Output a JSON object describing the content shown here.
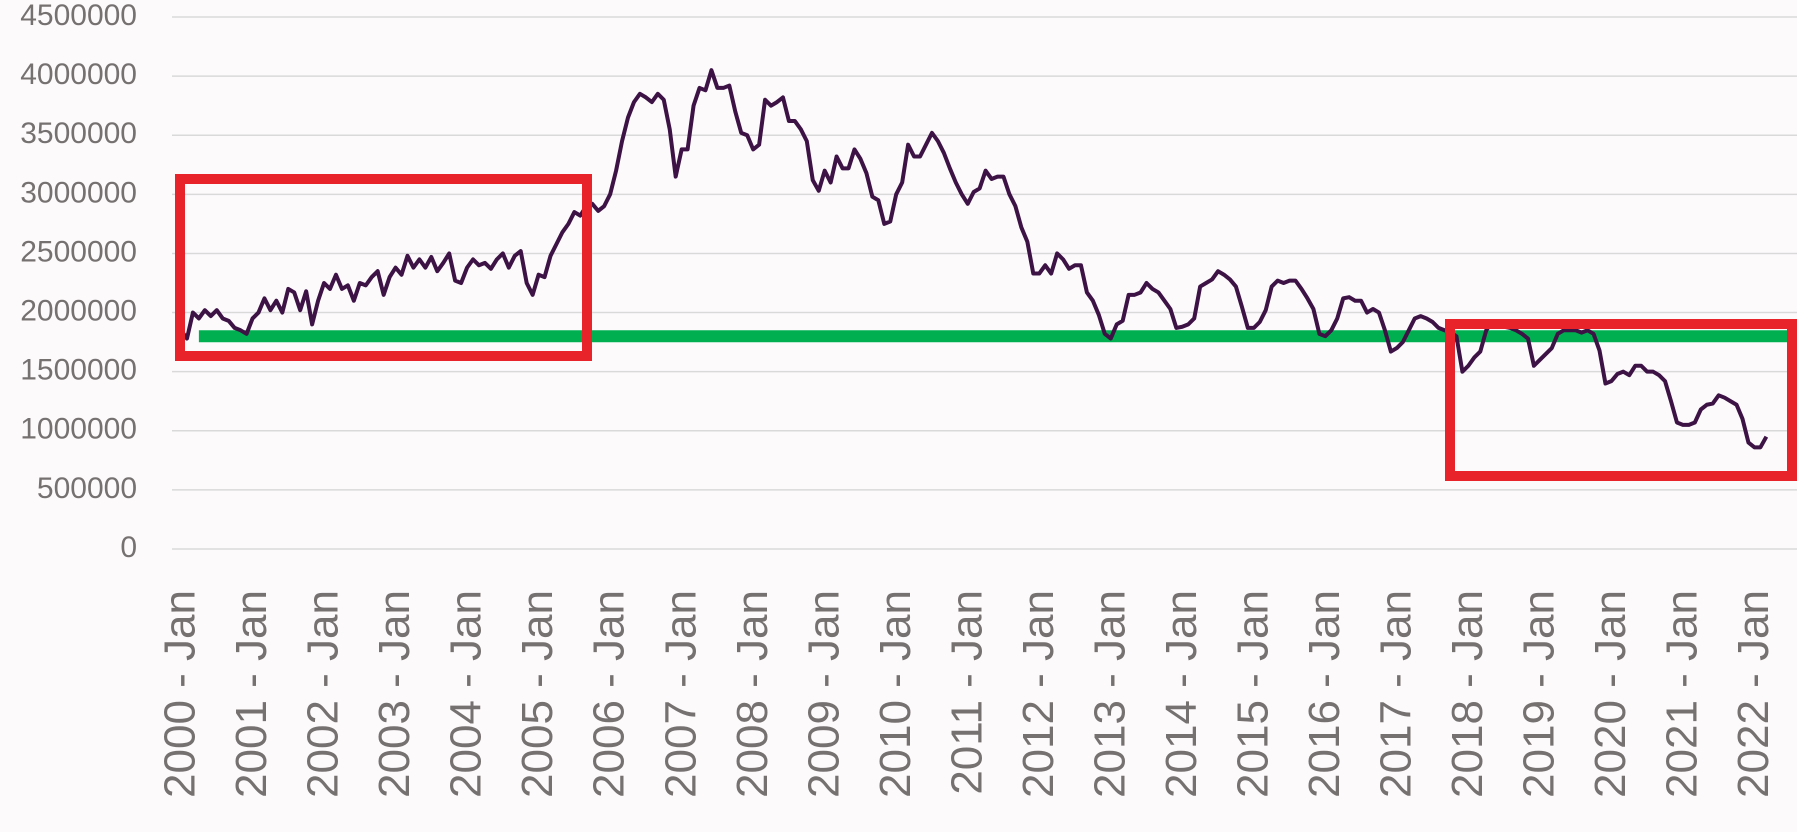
{
  "chart_data": {
    "type": "line",
    "categories": [
      "2000 - Jan",
      null,
      null,
      null,
      null,
      null,
      null,
      null,
      null,
      null,
      null,
      null,
      "2001 - Jan",
      null,
      null,
      null,
      null,
      null,
      null,
      null,
      null,
      null,
      null,
      null,
      "2002 - Jan",
      null,
      null,
      null,
      null,
      null,
      null,
      null,
      null,
      null,
      null,
      null,
      "2003 - Jan",
      null,
      null,
      null,
      null,
      null,
      null,
      null,
      null,
      null,
      null,
      null,
      "2004 - Jan",
      null,
      null,
      null,
      null,
      null,
      null,
      null,
      null,
      null,
      null,
      null,
      "2005 - Jan",
      null,
      null,
      null,
      null,
      null,
      null,
      null,
      null,
      null,
      null,
      null,
      "2006 - Jan",
      null,
      null,
      null,
      null,
      null,
      null,
      null,
      null,
      null,
      null,
      null,
      "2007 - Jan",
      null,
      null,
      null,
      null,
      null,
      null,
      null,
      null,
      null,
      null,
      null,
      "2008 - Jan",
      null,
      null,
      null,
      null,
      null,
      null,
      null,
      null,
      null,
      null,
      null,
      "2009 - Jan",
      null,
      null,
      null,
      null,
      null,
      null,
      null,
      null,
      null,
      null,
      null,
      "2010 - Jan",
      null,
      null,
      null,
      null,
      null,
      null,
      null,
      null,
      null,
      null,
      null,
      "2011 - Jan",
      null,
      null,
      null,
      null,
      null,
      null,
      null,
      null,
      null,
      null,
      null,
      "2012 - Jan",
      null,
      null,
      null,
      null,
      null,
      null,
      null,
      null,
      null,
      null,
      null,
      "2013 - Jan",
      null,
      null,
      null,
      null,
      null,
      null,
      null,
      null,
      null,
      null,
      null,
      "2014 - Jan",
      null,
      null,
      null,
      null,
      null,
      null,
      null,
      null,
      null,
      null,
      null,
      "2015 - Jan",
      null,
      null,
      null,
      null,
      null,
      null,
      null,
      null,
      null,
      null,
      null,
      "2016 - Jan",
      null,
      null,
      null,
      null,
      null,
      null,
      null,
      null,
      null,
      null,
      null,
      "2017 - Jan",
      null,
      null,
      null,
      null,
      null,
      null,
      null,
      null,
      null,
      null,
      null,
      "2018 - Jan",
      null,
      null,
      null,
      null,
      null,
      null,
      null,
      null,
      null,
      null,
      null,
      "2019 - Jan",
      null,
      null,
      null,
      null,
      null,
      null,
      null,
      null,
      null,
      null,
      null,
      "2020 - Jan",
      null,
      null,
      null,
      null,
      null,
      null,
      null,
      null,
      null,
      null,
      null,
      "2021 - Jan",
      null,
      null,
      null,
      null,
      null,
      null,
      null,
      null,
      null,
      null,
      null,
      "2022 - Jan",
      null,
      null
    ],
    "series": [
      {
        "color": "#3d1245",
        "values": [
          1850000,
          1780000,
          2000000,
          1950000,
          2020000,
          1970000,
          2020000,
          1950000,
          1930000,
          1870000,
          1850000,
          1820000,
          1950000,
          2000000,
          2120000,
          2020000,
          2100000,
          2000000,
          2200000,
          2170000,
          2020000,
          2180000,
          1900000,
          2100000,
          2250000,
          2200000,
          2320000,
          2200000,
          2230000,
          2100000,
          2250000,
          2230000,
          2300000,
          2350000,
          2150000,
          2300000,
          2380000,
          2320000,
          2480000,
          2380000,
          2450000,
          2380000,
          2470000,
          2350000,
          2420000,
          2500000,
          2270000,
          2250000,
          2380000,
          2450000,
          2400000,
          2420000,
          2370000,
          2450000,
          2500000,
          2380000,
          2480000,
          2520000,
          2250000,
          2150000,
          2320000,
          2300000,
          2480000,
          2580000,
          2680000,
          2750000,
          2850000,
          2820000,
          2900000,
          2920000,
          2860000,
          2900000,
          3000000,
          3200000,
          3450000,
          3650000,
          3780000,
          3850000,
          3820000,
          3780000,
          3850000,
          3800000,
          3550000,
          3150000,
          3380000,
          3380000,
          3750000,
          3900000,
          3880000,
          4050000,
          3900000,
          3900000,
          3920000,
          3700000,
          3520000,
          3500000,
          3380000,
          3420000,
          3800000,
          3750000,
          3780000,
          3820000,
          3620000,
          3620000,
          3550000,
          3450000,
          3120000,
          3030000,
          3200000,
          3100000,
          3320000,
          3220000,
          3220000,
          3380000,
          3300000,
          3180000,
          2980000,
          2950000,
          2750000,
          2770000,
          3000000,
          3100000,
          3420000,
          3320000,
          3320000,
          3420000,
          3520000,
          3450000,
          3350000,
          3220000,
          3100000,
          3000000,
          2920000,
          3020000,
          3050000,
          3200000,
          3130000,
          3150000,
          3150000,
          3000000,
          2900000,
          2720000,
          2600000,
          2330000,
          2330000,
          2400000,
          2330000,
          2500000,
          2450000,
          2370000,
          2400000,
          2400000,
          2170000,
          2100000,
          1980000,
          1820000,
          1780000,
          1900000,
          1930000,
          2150000,
          2150000,
          2170000,
          2250000,
          2200000,
          2170000,
          2100000,
          2030000,
          1870000,
          1880000,
          1900000,
          1950000,
          2220000,
          2250000,
          2280000,
          2350000,
          2320000,
          2280000,
          2220000,
          2050000,
          1870000,
          1870000,
          1920000,
          2020000,
          2220000,
          2270000,
          2250000,
          2270000,
          2270000,
          2200000,
          2120000,
          2030000,
          1820000,
          1800000,
          1850000,
          1950000,
          2120000,
          2130000,
          2100000,
          2100000,
          2000000,
          2030000,
          2000000,
          1850000,
          1670000,
          1700000,
          1750000,
          1850000,
          1950000,
          1970000,
          1950000,
          1920000,
          1870000,
          1850000,
          1830000,
          1800000,
          1500000,
          1550000,
          1620000,
          1670000,
          1850000,
          1920000,
          1900000,
          1880000,
          1870000,
          1850000,
          1820000,
          1780000,
          1550000,
          1600000,
          1650000,
          1700000,
          1820000,
          1850000,
          1850000,
          1850000,
          1830000,
          1850000,
          1820000,
          1680000,
          1400000,
          1420000,
          1480000,
          1500000,
          1470000,
          1550000,
          1550000,
          1500000,
          1500000,
          1470000,
          1420000,
          1250000,
          1070000,
          1050000,
          1050000,
          1070000,
          1180000,
          1220000,
          1230000,
          1300000,
          1280000,
          1250000,
          1220000,
          1100000,
          900000,
          860000,
          860000,
          950000
        ]
      }
    ],
    "hline": {
      "y": 1800000,
      "color": "#00b050"
    },
    "ylim": [
      0,
      4500000
    ],
    "yticks": [
      0,
      500000,
      1000000,
      1500000,
      2000000,
      2500000,
      3000000,
      3500000,
      4000000,
      4500000
    ],
    "grid": true
  }
}
